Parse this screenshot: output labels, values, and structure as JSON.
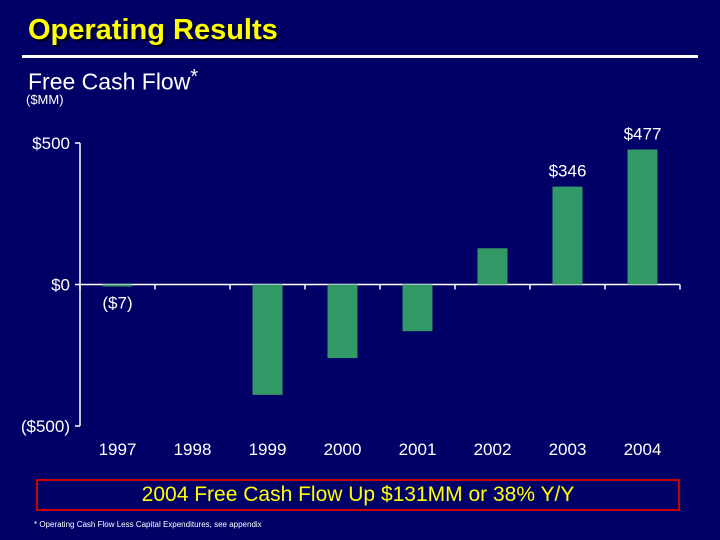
{
  "header": {
    "title": "Operating Results",
    "subtitle": "Free Cash Flow",
    "subtitle_marker": "*",
    "units": "($MM)"
  },
  "chart_data": {
    "type": "bar",
    "title": "Free Cash Flow*",
    "ylabel": "($MM)",
    "xlabel": "",
    "categories": [
      "1997",
      "1998",
      "1999",
      "2000",
      "2001",
      "2002",
      "2003",
      "2004"
    ],
    "values": [
      -7,
      0,
      -390,
      -260,
      -165,
      128,
      346,
      477
    ],
    "data_labels": [
      "($7)",
      "",
      "",
      "",
      "",
      "",
      "$346",
      "$477"
    ],
    "ylim": [
      -500,
      500
    ],
    "yticks": [
      500,
      0,
      -500
    ],
    "ytick_labels": [
      "$500",
      "$0",
      "($500)"
    ],
    "bar_color": "#339966",
    "grid": false
  },
  "callout": "2004 Free Cash Flow Up $131MM or 38% Y/Y",
  "footnote": "* Operating Cash Flow Less Capital Expenditures, see appendix",
  "colors": {
    "background": "#000066",
    "title": "#ffff00",
    "text": "#ffffff",
    "bar": "#339966",
    "callout_border": "#cc0000",
    "callout_text": "#ffff00"
  }
}
